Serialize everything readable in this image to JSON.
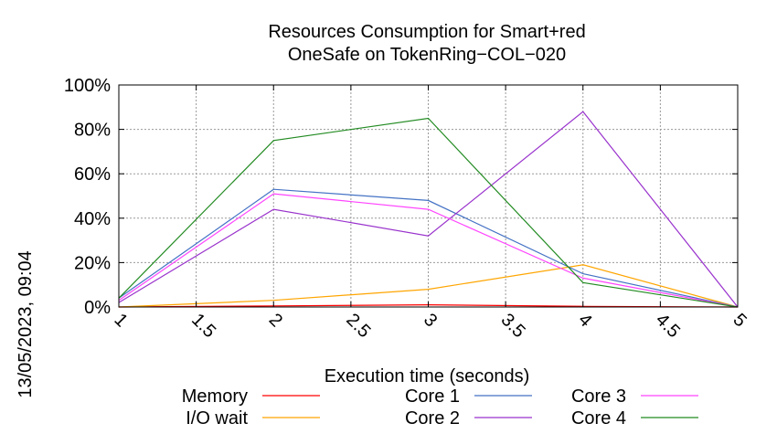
{
  "chart_data": {
    "type": "line",
    "title_lines": [
      "Resources Consumption for Smart+red",
      "OneSafe on TokenRing−COL−020"
    ],
    "xlabel": "Execution time (seconds)",
    "ylabel": "",
    "side_label": "13/05/2023, 09:04",
    "xlim": [
      1,
      5
    ],
    "ylim": [
      0,
      100
    ],
    "x_ticks": [
      1,
      1.5,
      2,
      2.5,
      3,
      3.5,
      4,
      4.5,
      5
    ],
    "x_tick_labels": [
      "1",
      "1.5",
      "2",
      "2.5",
      "3",
      "3.5",
      "4",
      "4.5",
      "5"
    ],
    "y_ticks": [
      0,
      20,
      40,
      60,
      80,
      100
    ],
    "y_tick_labels": [
      "0%",
      "20%",
      "40%",
      "60%",
      "80%",
      "100%"
    ],
    "grid": true,
    "legend_position": "bottom",
    "x": [
      1,
      2,
      3,
      4,
      5
    ],
    "series": [
      {
        "name": "Memory",
        "color": "#ff0000",
        "values": [
          0,
          0.5,
          1,
          0.3,
          0
        ]
      },
      {
        "name": "I/O wait",
        "color": "#ffa500",
        "values": [
          0,
          3,
          8,
          19,
          0
        ]
      },
      {
        "name": "Core 1",
        "color": "#4472c4",
        "values": [
          4,
          53,
          48,
          15,
          0
        ]
      },
      {
        "name": "Core 2",
        "color": "#9932cc",
        "values": [
          2,
          44,
          32,
          88,
          0
        ]
      },
      {
        "name": "Core 3",
        "color": "#ff44ff",
        "values": [
          3,
          51,
          44,
          13,
          0
        ]
      },
      {
        "name": "Core 4",
        "color": "#228b22",
        "values": [
          4,
          75,
          85,
          11,
          0
        ]
      }
    ]
  }
}
